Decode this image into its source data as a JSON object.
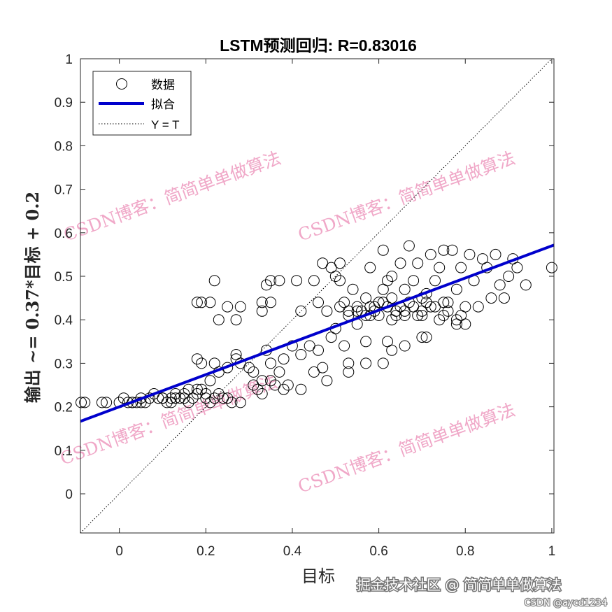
{
  "chart_data": {
    "type": "scatter",
    "title": "LSTM预测回归: R=0.83016",
    "xlabel": "目标",
    "ylabel": "输出 ~= 0.37*目标 + 0.2",
    "xlim": [
      -0.09,
      1.005
    ],
    "ylim": [
      -0.09,
      1.0
    ],
    "xticks": [
      "0",
      "0.2",
      "0.4",
      "0.6",
      "0.8",
      "1"
    ],
    "xtick_values": [
      0,
      0.2,
      0.4,
      0.6,
      0.8,
      1
    ],
    "yticks": [
      "0",
      "0.1",
      "0.2",
      "0.3",
      "0.4",
      "0.5",
      "0.6",
      "0.7",
      "0.8",
      "0.9",
      "1"
    ],
    "ytick_values": [
      0,
      0.1,
      0.2,
      0.3,
      0.4,
      0.5,
      0.6,
      0.7,
      0.8,
      0.9,
      1
    ],
    "grid": false,
    "legend_position": "top-left",
    "legend": [
      "数据",
      "拟合",
      "Y = T"
    ],
    "fit": {
      "slope": 0.37,
      "intercept": 0.2,
      "color": "#0000cc"
    },
    "identity_line": {
      "color": "#000000"
    },
    "series": [
      {
        "name": "数据",
        "points": [
          [
            -0.09,
            0.21
          ],
          [
            -0.08,
            0.21
          ],
          [
            -0.04,
            0.21
          ],
          [
            -0.03,
            0.21
          ],
          [
            0.0,
            0.21
          ],
          [
            0.01,
            0.22
          ],
          [
            0.02,
            0.21
          ],
          [
            0.03,
            0.21
          ],
          [
            0.03,
            0.21
          ],
          [
            0.04,
            0.21
          ],
          [
            0.05,
            0.22
          ],
          [
            0.05,
            0.21
          ],
          [
            0.06,
            0.21
          ],
          [
            0.07,
            0.22
          ],
          [
            0.08,
            0.23
          ],
          [
            0.09,
            0.22
          ],
          [
            0.1,
            0.22
          ],
          [
            0.1,
            0.22
          ],
          [
            0.11,
            0.21
          ],
          [
            0.12,
            0.22
          ],
          [
            0.12,
            0.21
          ],
          [
            0.13,
            0.22
          ],
          [
            0.13,
            0.23
          ],
          [
            0.14,
            0.22
          ],
          [
            0.15,
            0.22
          ],
          [
            0.15,
            0.23
          ],
          [
            0.16,
            0.21
          ],
          [
            0.16,
            0.24
          ],
          [
            0.17,
            0.22
          ],
          [
            0.18,
            0.23
          ],
          [
            0.18,
            0.24
          ],
          [
            0.19,
            0.24
          ],
          [
            0.2,
            0.23
          ],
          [
            0.2,
            0.22
          ],
          [
            0.21,
            0.21
          ],
          [
            0.22,
            0.22
          ],
          [
            0.23,
            0.23
          ],
          [
            0.24,
            0.22
          ],
          [
            0.25,
            0.22
          ],
          [
            0.26,
            0.21
          ],
          [
            0.28,
            0.21
          ],
          [
            0.18,
            0.31
          ],
          [
            0.19,
            0.3
          ],
          [
            0.21,
            0.26
          ],
          [
            0.22,
            0.3
          ],
          [
            0.23,
            0.28
          ],
          [
            0.25,
            0.29
          ],
          [
            0.27,
            0.31
          ],
          [
            0.27,
            0.32
          ],
          [
            0.28,
            0.3
          ],
          [
            0.3,
            0.29
          ],
          [
            0.31,
            0.28
          ],
          [
            0.31,
            0.25
          ],
          [
            0.32,
            0.24
          ],
          [
            0.33,
            0.26
          ],
          [
            0.34,
            0.33
          ],
          [
            0.35,
            0.3
          ],
          [
            0.36,
            0.25
          ],
          [
            0.37,
            0.28
          ],
          [
            0.38,
            0.31
          ],
          [
            0.38,
            0.24
          ],
          [
            0.39,
            0.25
          ],
          [
            0.4,
            0.34
          ],
          [
            0.42,
            0.24
          ],
          [
            0.33,
            0.23
          ],
          [
            0.35,
            0.26
          ],
          [
            0.18,
            0.44
          ],
          [
            0.19,
            0.44
          ],
          [
            0.21,
            0.44
          ],
          [
            0.22,
            0.49
          ],
          [
            0.23,
            0.4
          ],
          [
            0.25,
            0.43
          ],
          [
            0.27,
            0.4
          ],
          [
            0.28,
            0.43
          ],
          [
            0.33,
            0.42
          ],
          [
            0.33,
            0.44
          ],
          [
            0.34,
            0.48
          ],
          [
            0.35,
            0.49
          ],
          [
            0.35,
            0.44
          ],
          [
            0.37,
            0.49
          ],
          [
            0.41,
            0.49
          ],
          [
            0.42,
            0.42
          ],
          [
            0.42,
            0.32
          ],
          [
            0.44,
            0.34
          ],
          [
            0.45,
            0.28
          ],
          [
            0.46,
            0.33
          ],
          [
            0.47,
            0.29
          ],
          [
            0.48,
            0.26
          ],
          [
            0.49,
            0.36
          ],
          [
            0.5,
            0.38
          ],
          [
            0.52,
            0.34
          ],
          [
            0.53,
            0.3
          ],
          [
            0.53,
            0.28
          ],
          [
            0.57,
            0.3
          ],
          [
            0.57,
            0.35
          ],
          [
            0.61,
            0.3
          ],
          [
            0.62,
            0.35
          ],
          [
            0.63,
            0.33
          ],
          [
            0.66,
            0.34
          ],
          [
            0.7,
            0.36
          ],
          [
            0.71,
            0.36
          ],
          [
            0.45,
            0.49
          ],
          [
            0.46,
            0.44
          ],
          [
            0.47,
            0.53
          ],
          [
            0.48,
            0.42
          ],
          [
            0.49,
            0.52
          ],
          [
            0.5,
            0.5
          ],
          [
            0.51,
            0.49
          ],
          [
            0.51,
            0.53
          ],
          [
            0.51,
            0.43
          ],
          [
            0.52,
            0.44
          ],
          [
            0.53,
            0.41
          ],
          [
            0.54,
            0.47
          ],
          [
            0.55,
            0.43
          ],
          [
            0.55,
            0.39
          ],
          [
            0.56,
            0.42
          ],
          [
            0.57,
            0.45
          ],
          [
            0.58,
            0.52
          ],
          [
            0.58,
            0.41
          ],
          [
            0.59,
            0.43
          ],
          [
            0.6,
            0.44
          ],
          [
            0.61,
            0.47
          ],
          [
            0.61,
            0.56
          ],
          [
            0.62,
            0.43
          ],
          [
            0.62,
            0.49
          ],
          [
            0.63,
            0.5
          ],
          [
            0.63,
            0.45
          ],
          [
            0.64,
            0.42
          ],
          [
            0.65,
            0.53
          ],
          [
            0.66,
            0.47
          ],
          [
            0.66,
            0.41
          ],
          [
            0.67,
            0.57
          ],
          [
            0.67,
            0.44
          ],
          [
            0.68,
            0.49
          ],
          [
            0.69,
            0.53
          ],
          [
            0.7,
            0.45
          ],
          [
            0.7,
            0.41
          ],
          [
            0.71,
            0.46
          ],
          [
            0.72,
            0.55
          ],
          [
            0.72,
            0.43
          ],
          [
            0.73,
            0.49
          ],
          [
            0.74,
            0.52
          ],
          [
            0.75,
            0.56
          ],
          [
            0.75,
            0.41
          ],
          [
            0.76,
            0.44
          ],
          [
            0.77,
            0.56
          ],
          [
            0.78,
            0.47
          ],
          [
            0.78,
            0.4
          ],
          [
            0.79,
            0.52
          ],
          [
            0.8,
            0.43
          ],
          [
            0.81,
            0.55
          ],
          [
            0.82,
            0.49
          ],
          [
            0.83,
            0.43
          ],
          [
            0.84,
            0.54
          ],
          [
            0.85,
            0.52
          ],
          [
            0.86,
            0.45
          ],
          [
            0.87,
            0.55
          ],
          [
            0.88,
            0.48
          ],
          [
            0.89,
            0.45
          ],
          [
            0.9,
            0.5
          ],
          [
            0.91,
            0.54
          ],
          [
            0.92,
            0.52
          ],
          [
            0.94,
            0.48
          ],
          [
            1.0,
            0.52
          ],
          [
            0.53,
            0.42
          ],
          [
            0.55,
            0.42
          ],
          [
            0.57,
            0.41
          ],
          [
            0.58,
            0.43
          ],
          [
            0.59,
            0.42
          ],
          [
            0.6,
            0.41
          ],
          [
            0.61,
            0.44
          ],
          [
            0.63,
            0.4
          ],
          [
            0.64,
            0.41
          ],
          [
            0.65,
            0.43
          ],
          [
            0.66,
            0.42
          ],
          [
            0.68,
            0.43
          ],
          [
            0.69,
            0.41
          ],
          [
            0.7,
            0.42
          ],
          [
            0.71,
            0.44
          ],
          [
            0.73,
            0.43
          ],
          [
            0.74,
            0.4
          ],
          [
            0.75,
            0.44
          ],
          [
            0.76,
            0.42
          ],
          [
            0.78,
            0.39
          ],
          [
            0.79,
            0.41
          ],
          [
            0.8,
            0.39
          ]
        ]
      }
    ]
  },
  "watermark": {
    "text": "CSDN博客：简简单单做算法",
    "color": "#f0a8c8"
  },
  "footer": {
    "text": "掘金技术社区 @ 简简单单做算法",
    "sub": "CSDN @aycd1234"
  }
}
